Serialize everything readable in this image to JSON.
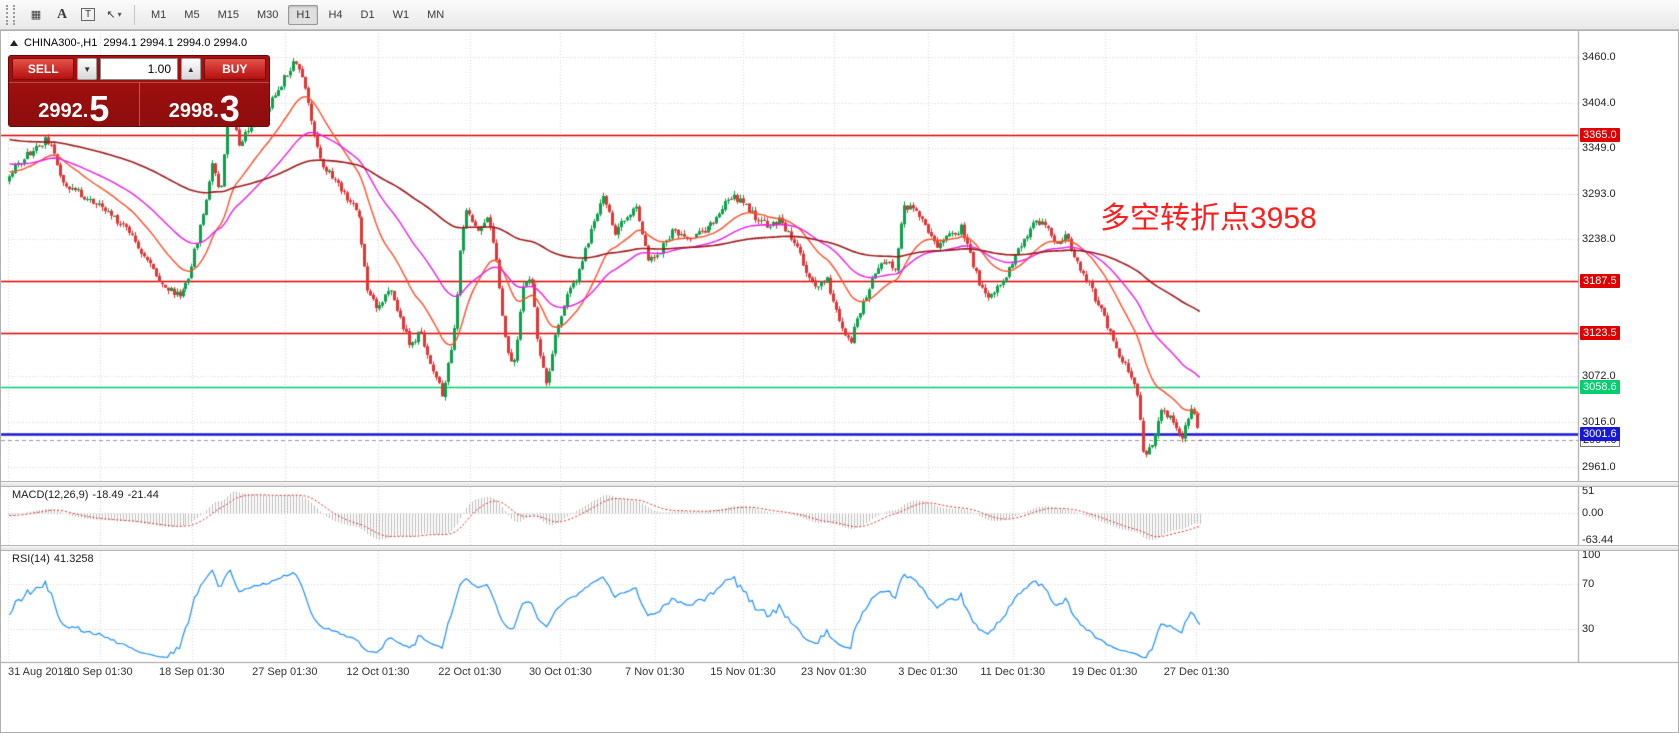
{
  "ui_colors": {
    "trade-red": "#a81111",
    "trade-red-dark": "#8d0d0d",
    "annotation-red": "#fe1e1e"
  },
  "toolbar": {
    "tools": [
      {
        "name": "crosshair-tool",
        "glyph": "▦"
      },
      {
        "name": "text-label-tool",
        "glyph": "A"
      },
      {
        "name": "text-box-tool",
        "glyph": "T"
      },
      {
        "name": "cursor-tool",
        "glyph": "↖",
        "caret": "▾"
      }
    ],
    "timeframes": [
      "M1",
      "M5",
      "M15",
      "M30",
      "H1",
      "H4",
      "D1",
      "W1",
      "MN"
    ],
    "active_timeframe": "H1"
  },
  "header": {
    "symbol": "CHINA300-,H1",
    "ohlc": "2994.1 2994.1 2994.0 2994.0"
  },
  "trade_panel": {
    "sell_label": "SELL",
    "buy_label": "BUY",
    "volume": "1.00",
    "dec_icon": "▼",
    "inc_icon": "▲",
    "bid_digits": "2992.",
    "bid_big": "5",
    "ask_digits": "2998.",
    "ask_big": "3"
  },
  "annotation": "多空转折点3958",
  "chart_data": {
    "type": "candlestick",
    "symbol": "CHINA300-",
    "timeframe": "H1",
    "current": {
      "open": 2994.1,
      "high": 2994.1,
      "low": 2994.0,
      "close": 2994.0,
      "bid": 2992.5,
      "ask": 2998.3
    },
    "price_axis": {
      "min": 2944,
      "max": 3489,
      "ticks": [
        {
          "label": "3460.0",
          "value": 3460
        },
        {
          "label": "3404.0",
          "value": 3404
        },
        {
          "label": "3349.0",
          "value": 3349
        },
        {
          "label": "3293.0",
          "value": 3293
        },
        {
          "label": "3238.0",
          "value": 3238
        },
        {
          "label": "3072.0",
          "value": 3072
        },
        {
          "label": "3016.0",
          "value": 3016
        },
        {
          "label": "2961.0",
          "value": 2961
        }
      ]
    },
    "hlines": [
      {
        "value": 3365.0,
        "label": "3365.0",
        "color": "#e00000",
        "width": 1.5
      },
      {
        "value": 3187.5,
        "label": "3187.5",
        "color": "#e00000",
        "width": 1.5
      },
      {
        "value": 3123.5,
        "label": "3123.5",
        "color": "#e00000",
        "width": 1.5
      },
      {
        "value": 3058.6,
        "label": "3058.6",
        "color": "#00cf6e",
        "width": 1.5
      },
      {
        "value": 3001.6,
        "label": "3001.6",
        "color": "#1717d8",
        "width": 2.5
      }
    ],
    "current_price_label": "2994.0",
    "x_labels": [
      {
        "label": "31 Aug 2018",
        "t": 0
      },
      {
        "label": "10 Sep 01:30",
        "t": 0.077
      },
      {
        "label": "18 Sep 01:30",
        "t": 0.154
      },
      {
        "label": "27 Sep 01:30",
        "t": 0.232
      },
      {
        "label": "12 Oct 01:30",
        "t": 0.31
      },
      {
        "label": "22 Oct 01:30",
        "t": 0.387
      },
      {
        "label": "30 Oct 01:30",
        "t": 0.463
      },
      {
        "label": "7 Nov 01:30",
        "t": 0.542
      },
      {
        "label": "15 Nov 01:30",
        "t": 0.616
      },
      {
        "label": "23 Nov 01:30",
        "t": 0.692
      },
      {
        "label": "3 Dec 01:30",
        "t": 0.771
      },
      {
        "label": "11 Dec 01:30",
        "t": 0.842
      },
      {
        "label": "19 Dec 01:30",
        "t": 0.919
      },
      {
        "label": "27 Dec 01:30",
        "t": 0.996
      }
    ],
    "candle_count": 400,
    "warmup_count": 160,
    "warmup_start": 3430,
    "noise_seed": 11,
    "data_ratio": 0.76,
    "price_path": [
      [
        0.0,
        3315
      ],
      [
        0.012,
        3338
      ],
      [
        0.032,
        3360
      ],
      [
        0.046,
        3306
      ],
      [
        0.067,
        3286
      ],
      [
        0.083,
        3270
      ],
      [
        0.1,
        3250
      ],
      [
        0.116,
        3210
      ],
      [
        0.131,
        3178
      ],
      [
        0.143,
        3170
      ],
      [
        0.151,
        3196
      ],
      [
        0.162,
        3262
      ],
      [
        0.171,
        3335
      ],
      [
        0.177,
        3292
      ],
      [
        0.185,
        3412
      ],
      [
        0.193,
        3356
      ],
      [
        0.204,
        3380
      ],
      [
        0.218,
        3400
      ],
      [
        0.231,
        3436
      ],
      [
        0.24,
        3458
      ],
      [
        0.247,
        3430
      ],
      [
        0.254,
        3376
      ],
      [
        0.262,
        3330
      ],
      [
        0.275,
        3306
      ],
      [
        0.285,
        3286
      ],
      [
        0.293,
        3268
      ],
      [
        0.3,
        3182
      ],
      [
        0.309,
        3156
      ],
      [
        0.32,
        3176
      ],
      [
        0.329,
        3140
      ],
      [
        0.337,
        3106
      ],
      [
        0.345,
        3126
      ],
      [
        0.356,
        3076
      ],
      [
        0.364,
        3048
      ],
      [
        0.373,
        3120
      ],
      [
        0.379,
        3230
      ],
      [
        0.384,
        3278
      ],
      [
        0.393,
        3246
      ],
      [
        0.401,
        3268
      ],
      [
        0.409,
        3210
      ],
      [
        0.416,
        3116
      ],
      [
        0.423,
        3080
      ],
      [
        0.431,
        3180
      ],
      [
        0.438,
        3190
      ],
      [
        0.444,
        3116
      ],
      [
        0.451,
        3058
      ],
      [
        0.459,
        3120
      ],
      [
        0.468,
        3170
      ],
      [
        0.476,
        3186
      ],
      [
        0.484,
        3226
      ],
      [
        0.493,
        3268
      ],
      [
        0.499,
        3294
      ],
      [
        0.508,
        3246
      ],
      [
        0.517,
        3262
      ],
      [
        0.527,
        3276
      ],
      [
        0.537,
        3210
      ],
      [
        0.547,
        3226
      ],
      [
        0.557,
        3248
      ],
      [
        0.567,
        3238
      ],
      [
        0.577,
        3246
      ],
      [
        0.587,
        3250
      ],
      [
        0.597,
        3272
      ],
      [
        0.607,
        3290
      ],
      [
        0.617,
        3284
      ],
      [
        0.627,
        3262
      ],
      [
        0.637,
        3255
      ],
      [
        0.647,
        3262
      ],
      [
        0.657,
        3240
      ],
      [
        0.666,
        3212
      ],
      [
        0.676,
        3178
      ],
      [
        0.686,
        3192
      ],
      [
        0.696,
        3140
      ],
      [
        0.706,
        3112
      ],
      [
        0.715,
        3155
      ],
      [
        0.725,
        3190
      ],
      [
        0.735,
        3212
      ],
      [
        0.744,
        3200
      ],
      [
        0.752,
        3280
      ],
      [
        0.76,
        3272
      ],
      [
        0.77,
        3255
      ],
      [
        0.78,
        3230
      ],
      [
        0.79,
        3242
      ],
      [
        0.8,
        3252
      ],
      [
        0.81,
        3205
      ],
      [
        0.819,
        3168
      ],
      [
        0.829,
        3178
      ],
      [
        0.839,
        3200
      ],
      [
        0.849,
        3228
      ],
      [
        0.859,
        3255
      ],
      [
        0.869,
        3260
      ],
      [
        0.879,
        3230
      ],
      [
        0.888,
        3246
      ],
      [
        0.898,
        3205
      ],
      [
        0.908,
        3180
      ],
      [
        0.918,
        3148
      ],
      [
        0.928,
        3112
      ],
      [
        0.938,
        3082
      ],
      [
        0.947,
        3056
      ],
      [
        0.953,
        2968
      ],
      [
        0.96,
        2992
      ],
      [
        0.968,
        3032
      ],
      [
        0.977,
        3016
      ],
      [
        0.985,
        2996
      ],
      [
        0.993,
        3036
      ],
      [
        1.0,
        2994
      ]
    ],
    "ma": [
      {
        "period": 20,
        "color": "#ff4f28",
        "width": 1.4
      },
      {
        "period": 45,
        "color": "#ea1fea",
        "width": 1.4
      },
      {
        "period": 140,
        "color": "#9e1a1a",
        "width": 1.6
      }
    ],
    "macd": {
      "label": "MACD(12,26,9)",
      "main_value": "-18.49",
      "signal_value": "-21.44",
      "axis_labels": [
        "51",
        "0.00",
        "-63.44"
      ],
      "range": [
        -63.44,
        51
      ]
    },
    "rsi": {
      "label": "RSI(14)",
      "value": "41.3258",
      "axis_labels": [
        {
          "label": "100",
          "value": 100
        },
        {
          "label": "70",
          "value": 70
        },
        {
          "label": "30",
          "value": 30
        }
      ],
      "levels": [
        70,
        30
      ]
    },
    "colors": {
      "up": "#0ca14a",
      "down": "#e23535",
      "grid": "#d9d9d9",
      "macd_hist": "#bdbdbd",
      "macd_signal": "#e03030",
      "rsi": "#1e90ff",
      "current_line": "#9a9a9a"
    }
  }
}
